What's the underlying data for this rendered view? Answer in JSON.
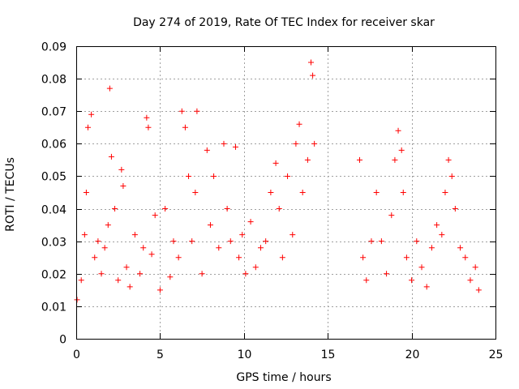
{
  "chart_data": {
    "type": "scatter",
    "title": "Day 274 of 2019, Rate Of TEC Index for receiver skar",
    "xlabel": "GPS time / hours",
    "ylabel": "ROTI / TECUs",
    "xlim": [
      0,
      25
    ],
    "ylim": [
      0,
      0.09
    ],
    "xticks": [
      0,
      5,
      10,
      15,
      20,
      25
    ],
    "yticks": [
      0,
      0.01,
      0.02,
      0.03,
      0.04,
      0.05,
      0.06,
      0.07,
      0.08,
      0.09
    ],
    "xtick_labels": [
      "0",
      "5",
      "10",
      "15",
      "20",
      "25"
    ],
    "ytick_labels": [
      "0",
      "0.01",
      "0.02",
      "0.03",
      "0.04",
      "0.05",
      "0.06",
      "0.07",
      "0.08",
      "0.09"
    ],
    "grid": true,
    "marker": "+",
    "marker_color": "#ff0000",
    "data_gap_hours": [
      14.3,
      16.8
    ],
    "series": [
      {
        "name": "ROTI",
        "x": [
          0.05,
          0.3,
          0.5,
          0.6,
          0.7,
          0.9,
          1.1,
          1.3,
          1.5,
          1.7,
          1.9,
          2.0,
          2.1,
          2.3,
          2.5,
          2.7,
          2.8,
          3.0,
          3.2,
          3.5,
          3.8,
          4.0,
          4.2,
          4.3,
          4.5,
          4.7,
          5.0,
          5.3,
          5.6,
          5.8,
          6.1,
          6.3,
          6.5,
          6.7,
          6.9,
          7.1,
          7.2,
          7.5,
          7.8,
          8.0,
          8.2,
          8.5,
          8.8,
          9.0,
          9.2,
          9.5,
          9.7,
          9.9,
          10.1,
          10.4,
          10.7,
          11.0,
          11.3,
          11.6,
          11.9,
          12.1,
          12.3,
          12.6,
          12.9,
          13.1,
          13.3,
          13.5,
          13.8,
          14.0,
          14.1,
          14.2,
          16.9,
          17.1,
          17.3,
          17.6,
          17.9,
          18.2,
          18.5,
          18.8,
          19.0,
          19.2,
          19.4,
          19.5,
          19.7,
          20.0,
          20.3,
          20.6,
          20.9,
          21.2,
          21.5,
          21.8,
          22.0,
          22.2,
          22.4,
          22.6,
          22.9,
          23.2,
          23.5,
          23.8,
          24.0
        ],
        "y": [
          0.012,
          0.018,
          0.032,
          0.045,
          0.065,
          0.069,
          0.025,
          0.03,
          0.02,
          0.028,
          0.035,
          0.077,
          0.056,
          0.04,
          0.018,
          0.052,
          0.047,
          0.022,
          0.016,
          0.032,
          0.02,
          0.028,
          0.068,
          0.065,
          0.026,
          0.038,
          0.015,
          0.04,
          0.019,
          0.03,
          0.025,
          0.07,
          0.065,
          0.05,
          0.03,
          0.045,
          0.07,
          0.02,
          0.058,
          0.035,
          0.05,
          0.028,
          0.06,
          0.04,
          0.03,
          0.059,
          0.025,
          0.032,
          0.02,
          0.036,
          0.022,
          0.028,
          0.03,
          0.045,
          0.054,
          0.04,
          0.025,
          0.05,
          0.032,
          0.06,
          0.066,
          0.045,
          0.055,
          0.085,
          0.081,
          0.06,
          0.055,
          0.025,
          0.018,
          0.03,
          0.045,
          0.03,
          0.02,
          0.038,
          0.055,
          0.064,
          0.058,
          0.045,
          0.025,
          0.018,
          0.03,
          0.022,
          0.016,
          0.028,
          0.035,
          0.032,
          0.045,
          0.055,
          0.05,
          0.04,
          0.028,
          0.025,
          0.018,
          0.022,
          0.015
        ]
      }
    ]
  }
}
